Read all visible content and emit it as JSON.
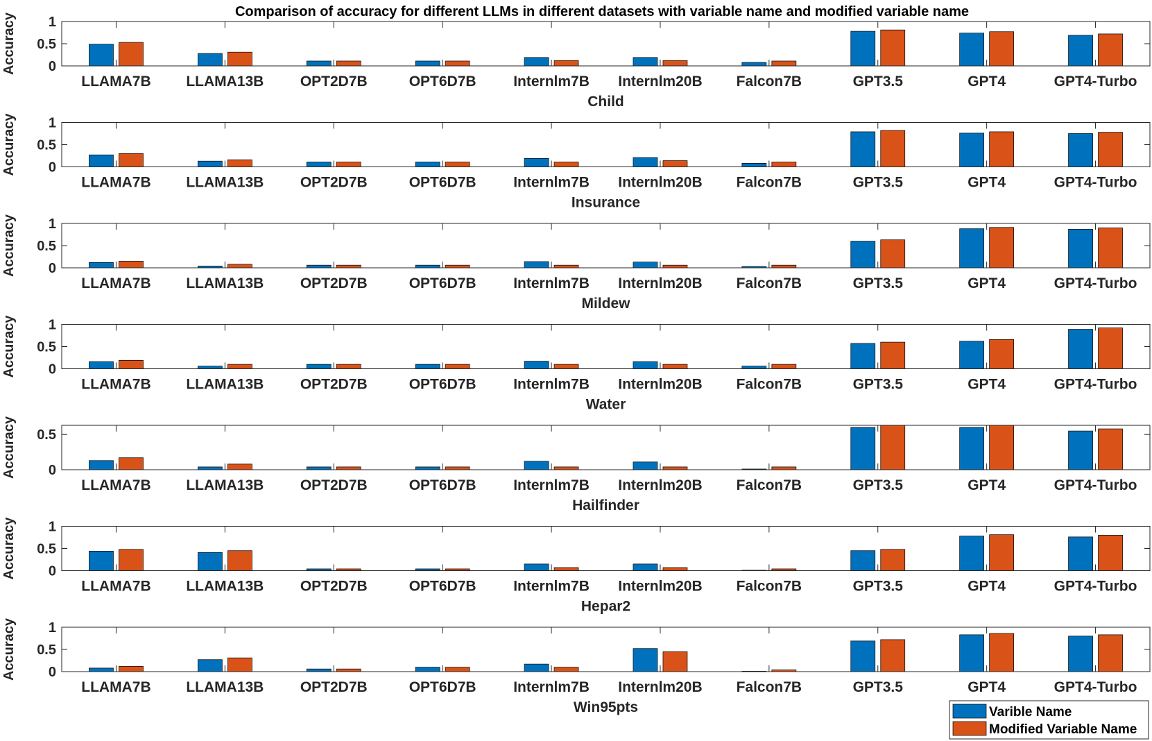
{
  "chart_data": {
    "type": "bar",
    "title": "Comparison of accuracy for different LLMs in different datasets with variable name and modified variable name",
    "ylabel": "Accuracy",
    "categories": [
      "LLAMA7B",
      "LLAMA13B",
      "OPT2D7B",
      "OPT6D7B",
      "Internlm7B",
      "Internlm20B",
      "Falcon7B",
      "GPT3.5",
      "GPT4",
      "GPT4-Turbo"
    ],
    "legend": {
      "position": "bottom-right",
      "entries": [
        "Varible Name",
        "Modified Variable Name"
      ]
    },
    "colors": [
      "#0072bd",
      "#d95319"
    ],
    "panels": [
      {
        "name": "Child",
        "ylim": [
          0,
          1
        ],
        "yticks": [
          0,
          0.5,
          1
        ],
        "ytick_labels": [
          "0",
          "0.5",
          "1"
        ],
        "series": [
          {
            "name": "Varible Name",
            "values": [
              0.49,
              0.28,
              0.11,
              0.11,
              0.19,
              0.19,
              0.08,
              0.78,
              0.74,
              0.69
            ]
          },
          {
            "name": "Modified Variable Name",
            "values": [
              0.53,
              0.31,
              0.11,
              0.11,
              0.12,
              0.12,
              0.11,
              0.81,
              0.77,
              0.72
            ]
          }
        ]
      },
      {
        "name": "Insurance",
        "ylim": [
          0,
          1
        ],
        "yticks": [
          0,
          0.5,
          1
        ],
        "ytick_labels": [
          "0",
          "0.5",
          "1"
        ],
        "series": [
          {
            "name": "Varible Name",
            "values": [
              0.27,
              0.13,
              0.11,
              0.11,
              0.19,
              0.21,
              0.08,
              0.79,
              0.76,
              0.75
            ]
          },
          {
            "name": "Modified Variable Name",
            "values": [
              0.3,
              0.16,
              0.11,
              0.11,
              0.11,
              0.14,
              0.11,
              0.82,
              0.79,
              0.78
            ]
          }
        ]
      },
      {
        "name": "Mildew",
        "ylim": [
          0,
          1
        ],
        "yticks": [
          0,
          0.5,
          1
        ],
        "ytick_labels": [
          "0",
          "0.5",
          "1"
        ],
        "series": [
          {
            "name": "Varible Name",
            "values": [
              0.12,
              0.04,
              0.06,
              0.06,
              0.14,
              0.13,
              0.03,
              0.6,
              0.88,
              0.87
            ]
          },
          {
            "name": "Modified Variable Name",
            "values": [
              0.15,
              0.08,
              0.06,
              0.06,
              0.06,
              0.06,
              0.06,
              0.63,
              0.91,
              0.9
            ]
          }
        ]
      },
      {
        "name": "Water",
        "ylim": [
          0,
          1
        ],
        "yticks": [
          0,
          0.5,
          1
        ],
        "ytick_labels": [
          "0",
          "0.5",
          "1"
        ],
        "series": [
          {
            "name": "Varible Name",
            "values": [
              0.16,
              0.06,
              0.1,
              0.1,
              0.17,
              0.16,
              0.06,
              0.57,
              0.62,
              0.89
            ]
          },
          {
            "name": "Modified Variable Name",
            "values": [
              0.19,
              0.1,
              0.1,
              0.1,
              0.1,
              0.1,
              0.1,
              0.6,
              0.66,
              0.92
            ]
          }
        ]
      },
      {
        "name": "Hailfinder",
        "ylim": [
          0,
          0.63
        ],
        "yticks": [
          0,
          0.5
        ],
        "ytick_labels": [
          "0",
          "0.5"
        ],
        "series": [
          {
            "name": "Varible Name",
            "values": [
              0.13,
              0.04,
              0.04,
              0.04,
              0.12,
              0.11,
              0.01,
              0.6,
              0.6,
              0.55
            ]
          },
          {
            "name": "Modified Variable Name",
            "values": [
              0.17,
              0.08,
              0.04,
              0.04,
              0.04,
              0.04,
              0.04,
              0.63,
              0.63,
              0.58
            ]
          }
        ]
      },
      {
        "name": "Hepar2",
        "ylim": [
          0,
          1
        ],
        "yticks": [
          0,
          0.5,
          1
        ],
        "ytick_labels": [
          "0",
          "0.5",
          "1"
        ],
        "series": [
          {
            "name": "Varible Name",
            "values": [
              0.44,
              0.41,
              0.04,
              0.04,
              0.15,
              0.15,
              0.01,
              0.45,
              0.78,
              0.76
            ]
          },
          {
            "name": "Modified Variable Name",
            "values": [
              0.48,
              0.45,
              0.04,
              0.04,
              0.07,
              0.07,
              0.04,
              0.48,
              0.81,
              0.8
            ]
          }
        ]
      },
      {
        "name": "Win95pts",
        "ylim": [
          0,
          1
        ],
        "yticks": [
          0,
          0.5,
          1
        ],
        "ytick_labels": [
          "0",
          "0.5",
          "1"
        ],
        "series": [
          {
            "name": "Varible Name",
            "values": [
              0.08,
              0.27,
              0.06,
              0.1,
              0.17,
              0.52,
              0.01,
              0.69,
              0.83,
              0.8
            ]
          },
          {
            "name": "Modified Variable Name",
            "values": [
              0.12,
              0.31,
              0.06,
              0.1,
              0.1,
              0.45,
              0.04,
              0.72,
              0.86,
              0.83
            ]
          }
        ]
      }
    ]
  }
}
